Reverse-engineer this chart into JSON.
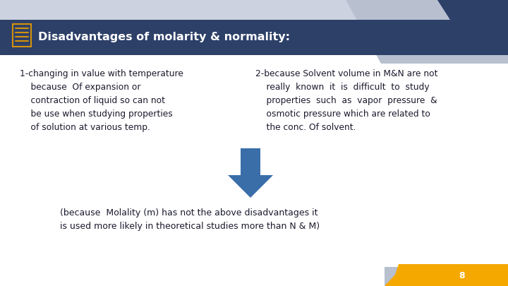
{
  "bg_color": "#cdd2e0",
  "header_bg": "#2d4068",
  "header_text": "Disadvantages of molarity & normality:",
  "header_text_color": "#ffffff",
  "header_icon_color": "#d4920a",
  "arrow_color": "#3a6ea8",
  "orange_bar_color": "#f5a800",
  "page_number": "8",
  "col1_lines": [
    "1-changing in value with temperature",
    "    because  Of expansion or",
    "    contraction of liquid so can not",
    "    be use when studying properties",
    "    of solution at various temp."
  ],
  "col2_lines": [
    "2-because Solvent volume in M&N are not",
    "    really  known  it  is  difficult  to  study",
    "    properties  such  as  vapor  pressure  &",
    "    osmotic pressure which are related to",
    "    the conc. Of solvent."
  ],
  "bottom_lines": [
    "(because  Molality (m) has not the above disadvantages it",
    "is used more likely in theoretical studies more than N & M)"
  ],
  "top_right_light_chevron": "#b8bfcf",
  "top_right_dark_chevron": "#2d4068",
  "bottom_right_light": "#b8bfcf",
  "content_text_color": "#1a1a2e",
  "body_bg": "#ffffff"
}
